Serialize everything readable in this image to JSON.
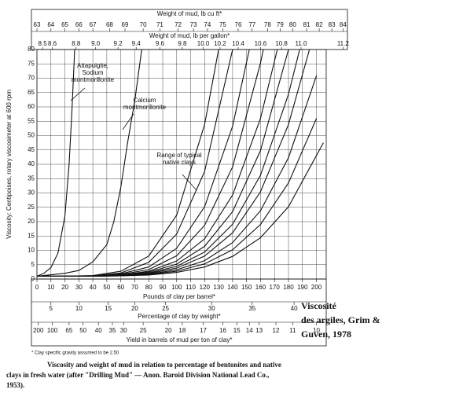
{
  "chart_data": {
    "type": "line",
    "xlabel": "Pounds of clay per barrel*",
    "ylabel": "Viscosity: Centipoises, rotary viscosimeter at 600 rpm",
    "xlim": [
      0,
      207
    ],
    "ylim": [
      0,
      80
    ],
    "xticks": [
      0,
      10,
      20,
      30,
      40,
      50,
      60,
      70,
      80,
      90,
      100,
      110,
      120,
      130,
      140,
      150,
      160,
      170,
      180,
      190,
      200
    ],
    "yticks": [
      0,
      5,
      10,
      15,
      20,
      25,
      30,
      35,
      40,
      45,
      50,
      55,
      60,
      65,
      70,
      75,
      80
    ],
    "grid": true,
    "color": "#111111",
    "series": [
      {
        "x": [
          0,
          5,
          10,
          15,
          20,
          23,
          25,
          27
        ],
        "values": [
          1,
          2,
          4,
          9,
          22,
          40,
          58,
          80
        ]
      },
      {
        "x": [
          0,
          20,
          30,
          40,
          50,
          55,
          60,
          65,
          70,
          75
        ],
        "values": [
          1,
          2,
          3,
          6,
          12,
          20,
          32,
          48,
          62,
          80
        ]
      },
      {
        "x": [
          0,
          20,
          40,
          60,
          80,
          100,
          120,
          130
        ],
        "values": [
          1,
          1,
          1.2,
          2.7,
          8,
          22.3,
          53.9,
          80
        ]
      },
      {
        "x": [
          0,
          20,
          40,
          60,
          80,
          100,
          120,
          140
        ],
        "values": [
          1,
          1,
          1.1,
          2.1,
          5.8,
          15.7,
          37.5,
          80
        ]
      },
      {
        "x": [
          0,
          20,
          40,
          60,
          80,
          100,
          120,
          140,
          152
        ],
        "values": [
          1,
          1,
          1.1,
          1.8,
          4.2,
          10.7,
          25.2,
          53.3,
          80
        ]
      },
      {
        "x": [
          0,
          20,
          40,
          60,
          80,
          100,
          120,
          140,
          160,
          162
        ],
        "values": [
          1,
          1,
          1.1,
          1.6,
          3.3,
          8.1,
          18.7,
          39.1,
          75.3,
          80
        ]
      },
      {
        "x": [
          0,
          20,
          40,
          60,
          80,
          100,
          120,
          140,
          160,
          172
        ],
        "values": [
          1,
          1,
          1,
          1.4,
          2.7,
          6.3,
          14,
          29.3,
          56,
          80
        ]
      },
      {
        "x": [
          0,
          20,
          40,
          60,
          80,
          100,
          120,
          140,
          160,
          180
        ],
        "values": [
          1,
          1,
          1,
          1.3,
          2.4,
          5.2,
          11.4,
          23.5,
          44.8,
          80
        ]
      },
      {
        "x": [
          0,
          20,
          40,
          60,
          80,
          100,
          120,
          140,
          160,
          180,
          188
        ],
        "values": [
          1,
          1,
          1,
          1.3,
          2.1,
          4.4,
          9.4,
          19.1,
          36.2,
          64.4,
          80
        ]
      },
      {
        "x": [
          0,
          20,
          40,
          60,
          80,
          100,
          120,
          140,
          160,
          180,
          195
        ],
        "values": [
          1,
          1,
          1,
          1.2,
          1.9,
          3.8,
          8,
          16.1,
          30.4,
          53.9,
          80
        ]
      },
      {
        "x": [
          0,
          20,
          40,
          60,
          80,
          100,
          120,
          140,
          160,
          180,
          200
        ],
        "values": [
          1,
          1,
          1,
          1.2,
          1.7,
          3.2,
          6.4,
          12.7,
          23.8,
          42.3,
          70.9
        ]
      },
      {
        "x": [
          0,
          20,
          40,
          60,
          80,
          100,
          120,
          140,
          160,
          180,
          200
        ],
        "values": [
          1,
          1,
          1,
          1.1,
          1.6,
          2.7,
          5.3,
          10.2,
          19,
          33.5,
          56
        ]
      },
      {
        "x": [
          0,
          20,
          40,
          60,
          80,
          100,
          120,
          140,
          160,
          180,
          205
        ],
        "values": [
          1,
          1,
          1,
          1.1,
          1.4,
          2.3,
          4.2,
          7.9,
          14.4,
          25.2,
          47.5
        ]
      }
    ],
    "annotations": [
      {
        "text": [
          "Attapulgite,",
          "Sodium",
          "montmorillonite"
        ]
      },
      {
        "text": [
          "Calcium",
          "montmorillonite"
        ]
      },
      {
        "text": [
          "Range of typical",
          "native clays"
        ]
      }
    ],
    "secondary_axes": [
      {
        "label": "Weight of mud, lb cu ft*",
        "ticks": [
          {
            "value": 0,
            "label": "63"
          },
          {
            "value": 10,
            "label": "64"
          },
          {
            "value": 20,
            "label": "65"
          },
          {
            "value": 30,
            "label": "66"
          },
          {
            "value": 40,
            "label": "67"
          },
          {
            "value": 52,
            "label": "68"
          },
          {
            "value": 63,
            "label": "69"
          },
          {
            "value": 76,
            "label": "70"
          },
          {
            "value": 88,
            "label": "71"
          },
          {
            "value": 101,
            "label": "72"
          },
          {
            "value": 112,
            "label": "73"
          },
          {
            "value": 122,
            "label": "74"
          },
          {
            "value": 133,
            "label": "75"
          },
          {
            "value": 144,
            "label": "76"
          },
          {
            "value": 154,
            "label": "77"
          },
          {
            "value": 165,
            "label": "78"
          },
          {
            "value": 174,
            "label": "79"
          },
          {
            "value": 183,
            "label": "80"
          },
          {
            "value": 193,
            "label": "81"
          },
          {
            "value": 202,
            "label": "82"
          },
          {
            "value": 211,
            "label": "83"
          },
          {
            "value": 219,
            "label": "84"
          }
        ]
      },
      {
        "label": "Weight of mud, lb per gallon*",
        "ticks": [
          {
            "value": 4,
            "label": "8.5"
          },
          {
            "value": 11,
            "label": "8.6"
          },
          {
            "value": 28,
            "label": "8.8"
          },
          {
            "value": 42,
            "label": "9.0"
          },
          {
            "value": 58,
            "label": "9.2"
          },
          {
            "value": 71,
            "label": "9.4"
          },
          {
            "value": 88,
            "label": "9.6"
          },
          {
            "value": 104,
            "label": "9.8"
          },
          {
            "value": 119,
            "label": "10.0"
          },
          {
            "value": 131,
            "label": "10.2"
          },
          {
            "value": 144,
            "label": "10.4"
          },
          {
            "value": 160,
            "label": "10.6"
          },
          {
            "value": 175,
            "label": "10.8"
          },
          {
            "value": 189,
            "label": "11.0"
          },
          {
            "value": 219,
            "label": "11.2"
          }
        ]
      },
      {
        "label": "Percentage of clay by weight*",
        "ticks": [
          {
            "value": 10,
            "label": "5"
          },
          {
            "value": 30,
            "label": "10"
          },
          {
            "value": 51,
            "label": "15"
          },
          {
            "value": 70,
            "label": "20"
          },
          {
            "value": 92,
            "label": "25"
          },
          {
            "value": 125,
            "label": "30"
          },
          {
            "value": 154,
            "label": "35"
          },
          {
            "value": 184,
            "label": "40"
          }
        ]
      },
      {
        "label": "Yield in barrels of mud per ton of clay*",
        "ticks": [
          {
            "value": 1,
            "label": "200"
          },
          {
            "value": 11,
            "label": "100"
          },
          {
            "value": 23,
            "label": "65"
          },
          {
            "value": 33,
            "label": "50"
          },
          {
            "value": 44,
            "label": "40"
          },
          {
            "value": 54,
            "label": "35"
          },
          {
            "value": 62,
            "label": "30"
          },
          {
            "value": 76,
            "label": "25"
          },
          {
            "value": 94,
            "label": "20"
          },
          {
            "value": 104,
            "label": "18"
          },
          {
            "value": 119,
            "label": "17"
          },
          {
            "value": 133,
            "label": "16"
          },
          {
            "value": 143,
            "label": "15"
          },
          {
            "value": 152,
            "label": "14"
          },
          {
            "value": 159,
            "label": "13"
          },
          {
            "value": 171,
            "label": "12"
          },
          {
            "value": 183,
            "label": "11"
          },
          {
            "value": 200,
            "label": "10"
          }
        ]
      }
    ],
    "footnote": "* Clay specific gravity assumed to be 2.50",
    "note": [
      "Viscosité",
      "des argiles, Grim &",
      "Guven, 1978"
    ],
    "caption": [
      "Viscosity and weight of mud in relation to percentage of bentonites and native",
      "clays in fresh water (after \"Drilling Mud\" — Anon. Baroid Division National Lead Co.,",
      "1953)."
    ]
  }
}
